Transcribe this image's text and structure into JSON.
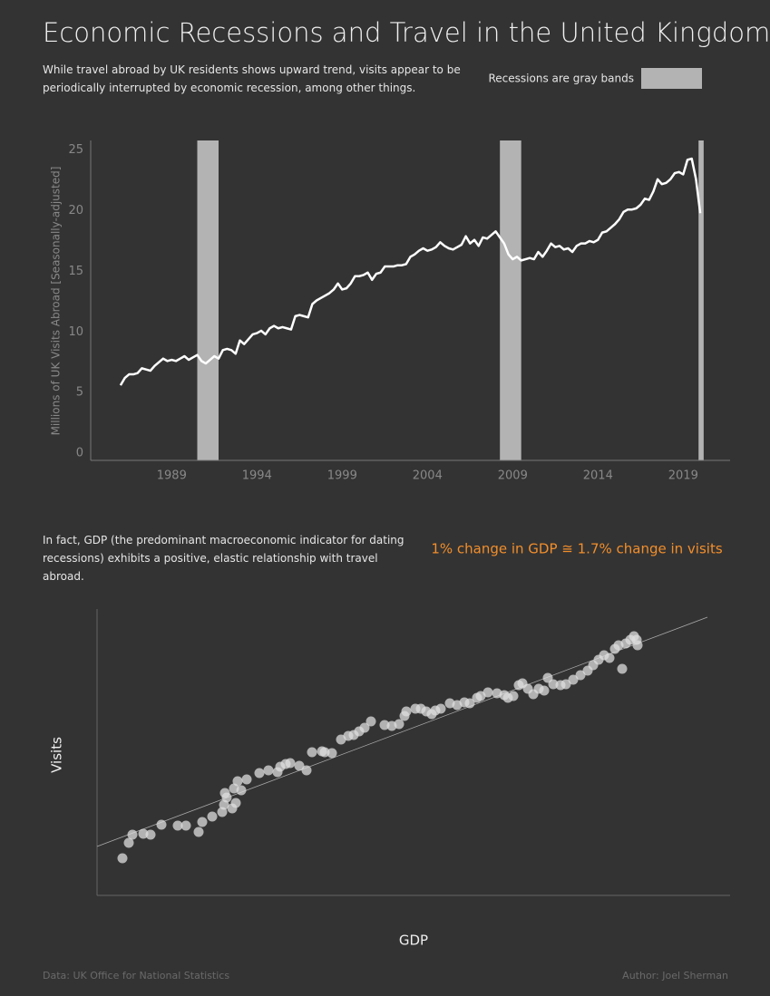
{
  "title": "Economic Recessions and Travel in the United Kingdom",
  "subtitle": "While travel abroad by UK residents shows upward trend, visits appear to be periodically interrupted by economic recession, among other things.",
  "legend_label": "Recessions are gray bands",
  "footer": {
    "source": "Data: UK Office for National Statistics",
    "author": "Author: Joel Sherman"
  },
  "chart_data": [
    {
      "type": "line",
      "y_label": "Millions of UK Visits Abroad [Seasonally-adjusted]",
      "color": "#ffffff",
      "recession_color": "#b3b3b3",
      "recessions": [
        [
          1990.5,
          1991.75
        ],
        [
          2008.25,
          2009.5
        ],
        [
          2019.9,
          2020.2
        ]
      ],
      "x": [
        1986,
        1986.25,
        1986.5,
        1986.75,
        1987,
        1987.25,
        1987.5,
        1987.75,
        1988,
        1988.25,
        1988.5,
        1988.75,
        1989,
        1989.25,
        1989.5,
        1989.75,
        1990,
        1990.25,
        1990.5,
        1990.75,
        1991,
        1991.25,
        1991.5,
        1991.75,
        1992,
        1992.25,
        1992.5,
        1992.75,
        1993,
        1993.25,
        1993.5,
        1993.75,
        1994,
        1994.25,
        1994.5,
        1994.75,
        1995,
        1995.25,
        1995.5,
        1995.75,
        1996,
        1996.25,
        1996.5,
        1996.75,
        1997,
        1997.25,
        1997.5,
        1997.75,
        1998,
        1998.25,
        1998.5,
        1998.75,
        1999,
        1999.25,
        1999.5,
        1999.75,
        2000,
        2000.25,
        2000.5,
        2000.75,
        2001,
        2001.25,
        2001.5,
        2001.75,
        2002,
        2002.25,
        2002.5,
        2002.75,
        2003,
        2003.25,
        2003.5,
        2003.75,
        2004,
        2004.25,
        2004.5,
        2004.75,
        2005,
        2005.25,
        2005.5,
        2005.75,
        2006,
        2006.25,
        2006.5,
        2006.75,
        2007,
        2007.25,
        2007.5,
        2007.75,
        2008,
        2008.25,
        2008.5,
        2008.75,
        2009,
        2009.25,
        2009.5,
        2009.75,
        2010,
        2010.25,
        2010.5,
        2010.75,
        2011,
        2011.25,
        2011.5,
        2011.75,
        2012,
        2012.25,
        2012.5,
        2012.75,
        2013,
        2013.25,
        2013.5,
        2013.75,
        2014,
        2014.25,
        2014.5,
        2014.75,
        2015,
        2015.25,
        2015.5,
        2015.75,
        2016,
        2016.25,
        2016.5,
        2016.75,
        2017,
        2017.25,
        2017.5,
        2017.75,
        2018,
        2018.25,
        2018.5,
        2018.75,
        2019,
        2019.25,
        2019.5,
        2019.75,
        2020
      ],
      "values": [
        5.6,
        6.2,
        6.5,
        6.5,
        6.6,
        7.0,
        6.9,
        6.8,
        7.2,
        7.5,
        7.8,
        7.6,
        7.7,
        7.6,
        7.8,
        8.0,
        7.7,
        7.9,
        8.1,
        7.6,
        7.4,
        7.7,
        8.0,
        7.8,
        8.5,
        8.6,
        8.5,
        8.2,
        9.3,
        9.0,
        9.4,
        9.8,
        9.9,
        10.1,
        9.8,
        10.3,
        10.5,
        10.3,
        10.4,
        10.3,
        10.2,
        11.3,
        11.4,
        11.3,
        11.2,
        12.3,
        12.6,
        12.8,
        13.0,
        13.2,
        13.5,
        14.0,
        13.5,
        13.6,
        14.0,
        14.6,
        14.6,
        14.7,
        14.9,
        14.3,
        14.8,
        14.9,
        15.4,
        15.4,
        15.4,
        15.5,
        15.5,
        15.6,
        16.2,
        16.4,
        16.7,
        16.9,
        16.7,
        16.8,
        17.0,
        17.4,
        17.1,
        16.9,
        16.8,
        17.0,
        17.2,
        17.9,
        17.3,
        17.6,
        17.1,
        17.8,
        17.7,
        18.0,
        18.3,
        17.8,
        17.3,
        16.4,
        16.0,
        16.2,
        15.9,
        16.0,
        16.1,
        16.0,
        16.6,
        16.2,
        16.7,
        17.3,
        17.0,
        17.1,
        16.8,
        16.9,
        16.6,
        17.1,
        17.3,
        17.3,
        17.5,
        17.4,
        17.6,
        18.2,
        18.3,
        18.6,
        18.9,
        19.3,
        19.9,
        20.1,
        20.1,
        20.2,
        20.5,
        21.0,
        20.9,
        21.6,
        22.6,
        22.2,
        22.3,
        22.6,
        23.1,
        23.2,
        23.0,
        24.2,
        24.3,
        22.6,
        19.8
      ],
      "xlim": [
        1984.25,
        2021.75
      ],
      "xticks": [
        1989,
        1994,
        1999,
        2004,
        2009,
        2014,
        2019
      ],
      "ylim": [
        -0.6,
        25.8
      ],
      "yticks": [
        0,
        5,
        10,
        15,
        20,
        25
      ]
    },
    {
      "type": "scatter",
      "description": "In fact, GDP (the predominant macroeconomic indicator for dating recessions) exhibits a positive, elastic relationship with travel abroad.",
      "annotation": "1% change in GDP ≅ 1.7% change in visits",
      "annotation_color": "#f28e2b",
      "x_label": "GDP",
      "y_label": "Visits",
      "color": "#dddddd",
      "trend_color": "#aaaaaa",
      "trendline": {
        "x": [
          0,
          673
        ],
        "y": [
          54,
          307
        ]
      },
      "x": [
        28,
        35,
        39,
        51,
        59,
        71,
        89,
        98,
        112,
        116,
        127,
        138,
        140,
        143,
        141,
        149,
        153,
        151,
        155,
        159,
        165,
        179,
        189,
        199,
        202,
        208,
        213,
        223,
        231,
        237,
        248,
        251,
        259,
        269,
        277,
        283,
        289,
        295,
        302,
        317,
        325,
        333,
        339,
        341,
        351,
        357,
        363,
        369,
        373,
        379,
        389,
        397,
        405,
        411,
        419,
        423,
        431,
        441,
        449,
        453,
        459,
        465,
        469,
        475,
        481,
        487,
        493,
        497,
        503,
        511,
        517,
        525,
        533,
        541,
        547,
        553,
        559,
        565,
        571,
        575,
        579,
        583,
        588,
        592,
        596,
        595
      ],
      "values": [
        41,
        58,
        67,
        68,
        67,
        78,
        77,
        77,
        70,
        81,
        87,
        92,
        100,
        108,
        113,
        96,
        102,
        118,
        126,
        116,
        128,
        135,
        138,
        136,
        142,
        145,
        146,
        143,
        138,
        158,
        159,
        158,
        157,
        172,
        176,
        177,
        181,
        185,
        192,
        188,
        187,
        189,
        198,
        203,
        206,
        206,
        203,
        200,
        204,
        206,
        212,
        210,
        213,
        212,
        218,
        220,
        224,
        223,
        221,
        218,
        220,
        232,
        234,
        228,
        222,
        228,
        226,
        240,
        233,
        232,
        233,
        238,
        243,
        248,
        254,
        260,
        265,
        262,
        272,
        276,
        250,
        278,
        282,
        286,
        276,
        282
      ],
      "xlim": [
        0,
        698
      ],
      "ylim": [
        0,
        316
      ]
    }
  ]
}
